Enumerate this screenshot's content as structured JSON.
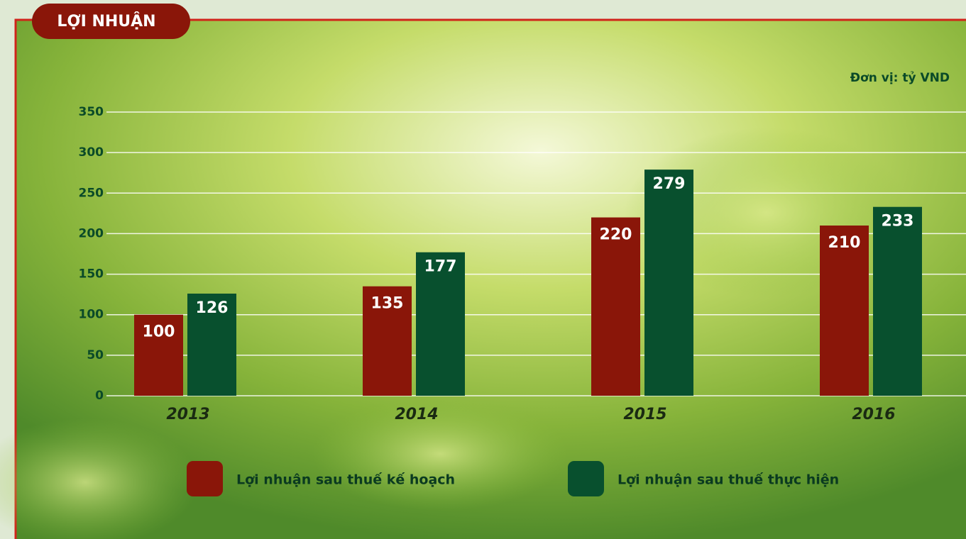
{
  "chart_data": {
    "type": "bar",
    "title": "LỢI NHUẬN",
    "unit_label": "Đơn vị: tỷ VND",
    "categories": [
      "2013",
      "2014",
      "2015",
      "2016"
    ],
    "series": [
      {
        "name": "Lợi nhuận sau thuế kế hoạch",
        "color": "#8a1609",
        "values": [
          100,
          135,
          220,
          210
        ]
      },
      {
        "name": "Lợi nhuận sau thuế thực hiện",
        "color": "#08502e",
        "values": [
          126,
          177,
          279,
          233
        ]
      }
    ],
    "ylim": [
      0,
      350
    ],
    "yticks": [
      0,
      50,
      100,
      150,
      200,
      250,
      300,
      350
    ],
    "grid": true
  }
}
